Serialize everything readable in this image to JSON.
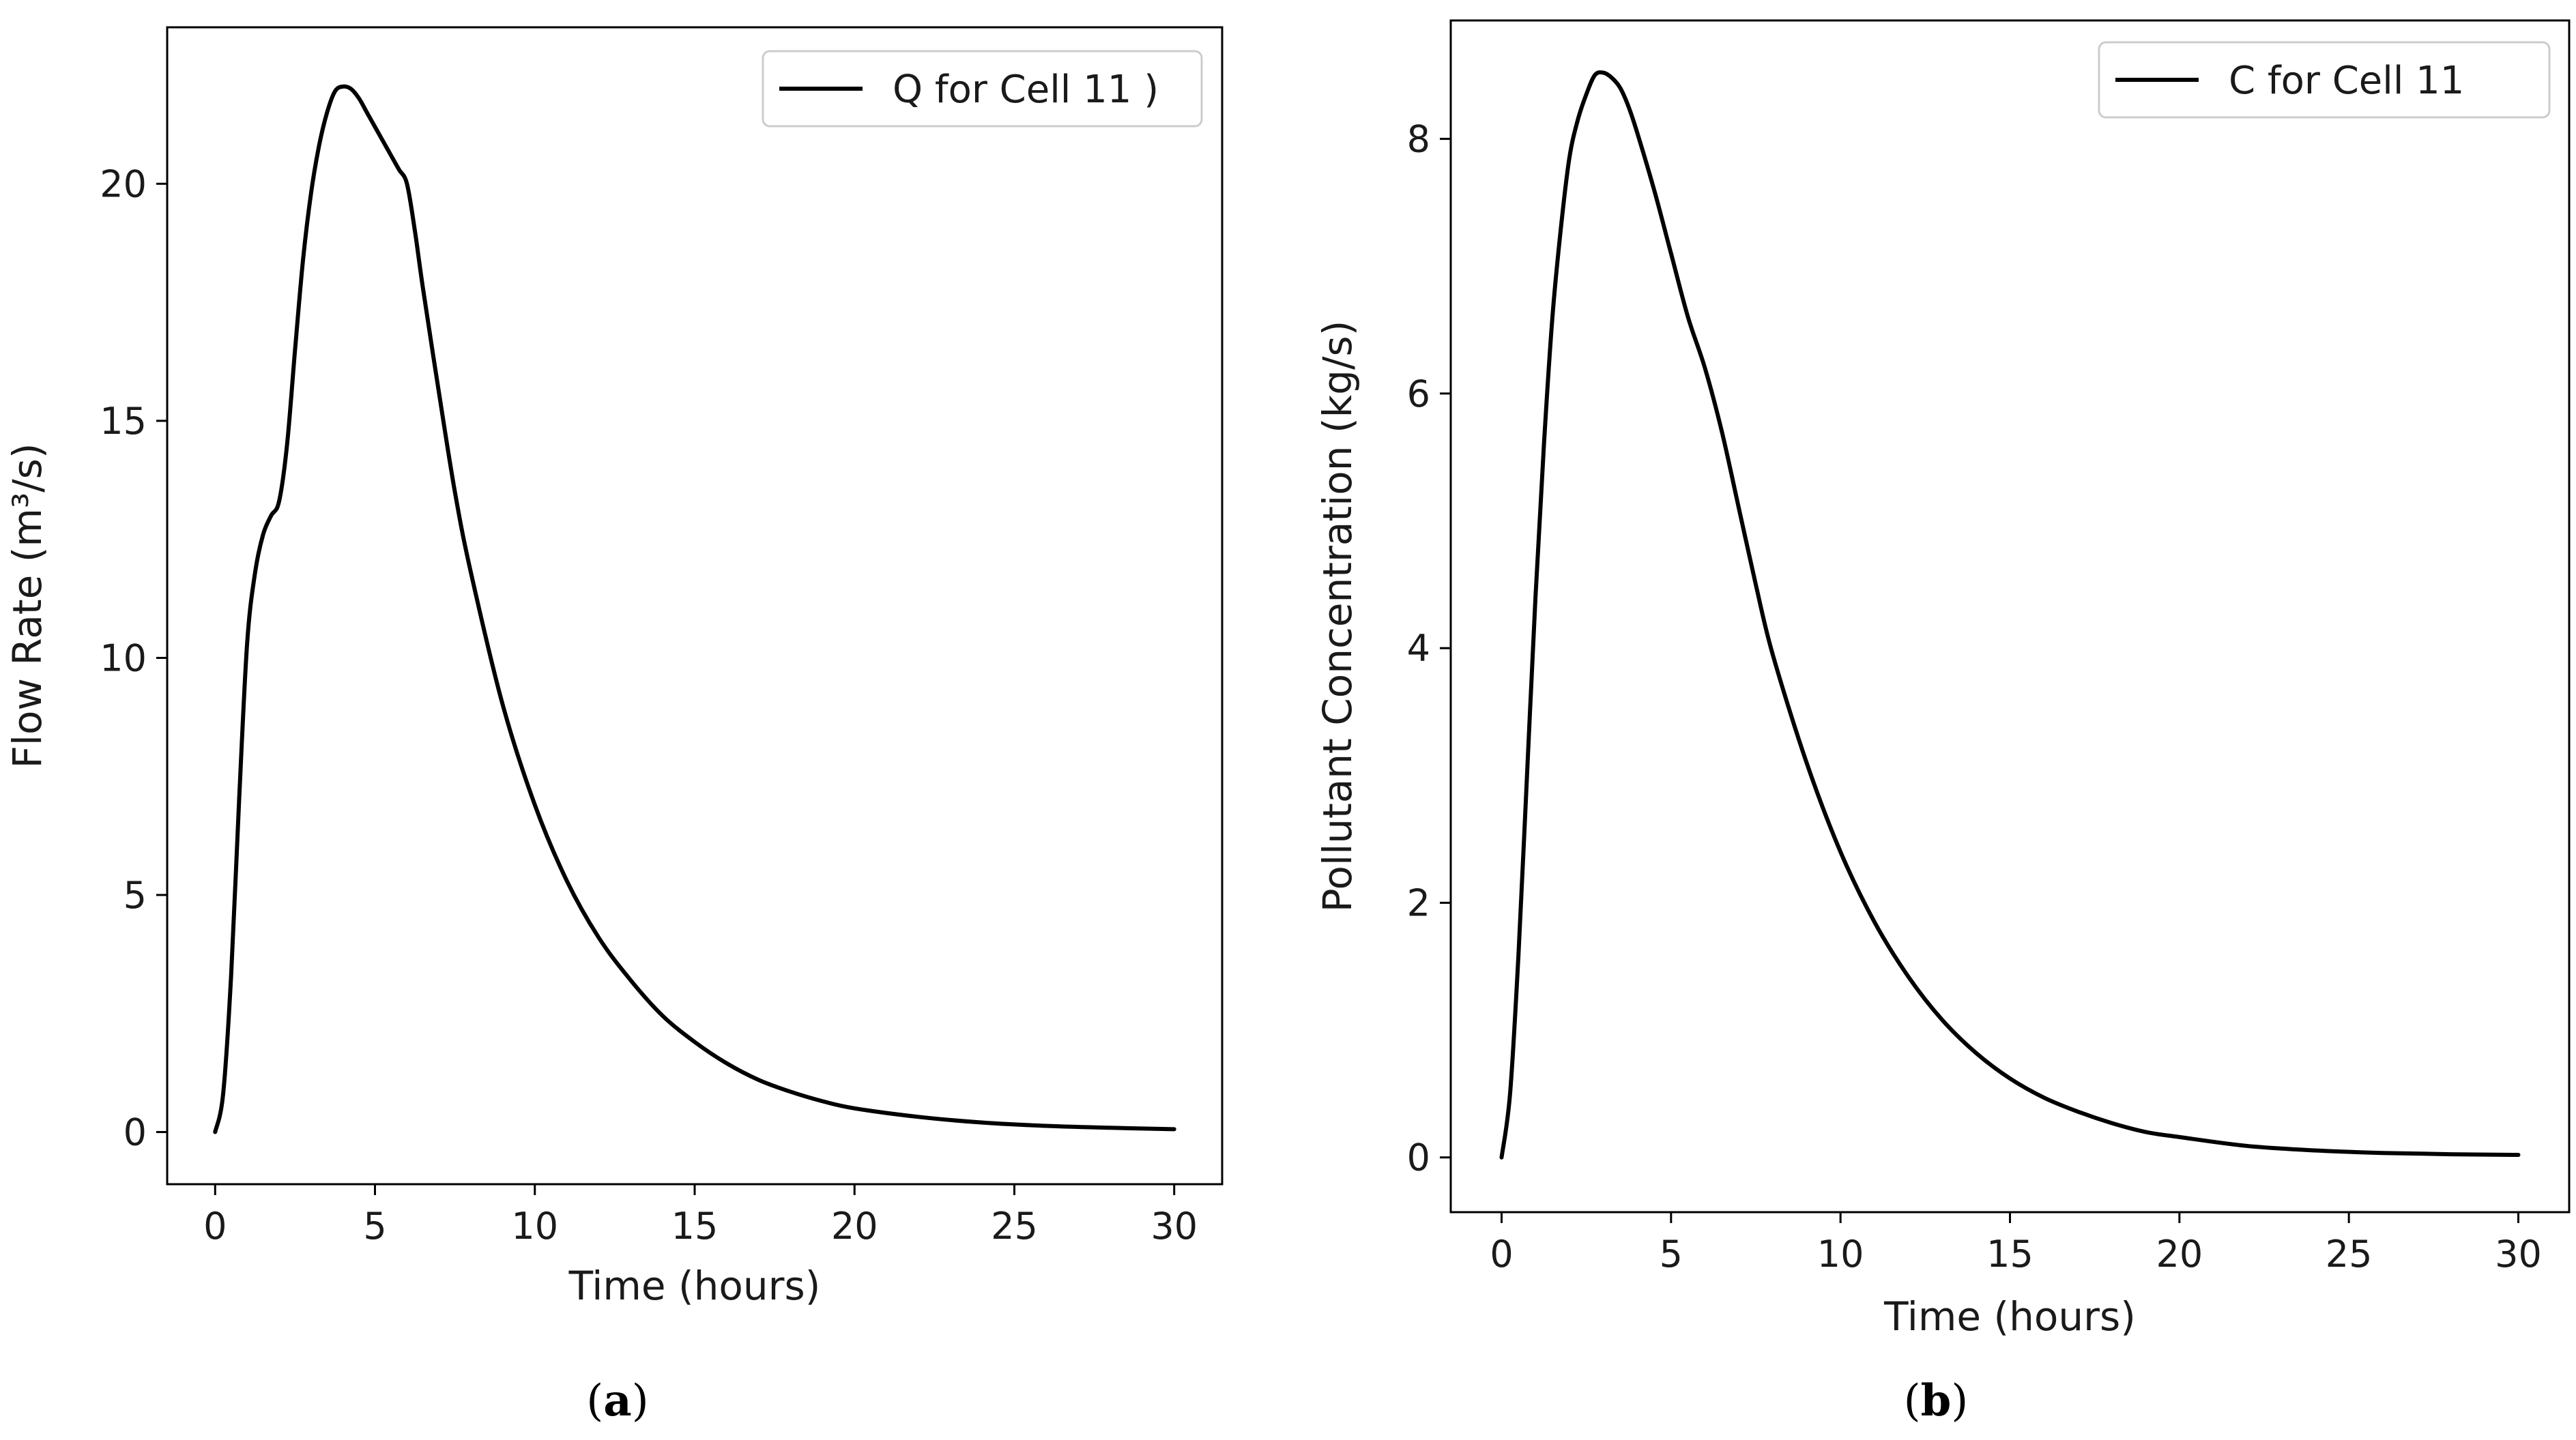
{
  "chart_data": [
    {
      "type": "line",
      "caption": "a",
      "title": "",
      "xlabel": "Time (hours)",
      "ylabel": "Flow Rate (m³/s)",
      "xlim": [
        -1.5,
        31.5
      ],
      "ylim": [
        -1.1,
        23.3
      ],
      "xticks": [
        0,
        5,
        10,
        15,
        20,
        25,
        30
      ],
      "yticks": [
        0,
        5,
        10,
        15,
        20
      ],
      "legend_position": "top-right",
      "grid": false,
      "series": [
        {
          "name": "Q for Cell 11 )",
          "color": "#000000",
          "x": [
            0,
            0.25,
            0.5,
            0.75,
            1.0,
            1.25,
            1.5,
            1.75,
            2.0,
            2.25,
            2.5,
            2.75,
            3.0,
            3.25,
            3.5,
            3.75,
            4.0,
            4.25,
            4.5,
            4.75,
            5.0,
            5.25,
            5.5,
            5.75,
            6.0,
            6.25,
            6.5,
            7,
            7.5,
            8,
            9,
            10,
            11,
            12,
            13,
            14,
            15,
            16,
            17,
            18,
            19,
            20,
            22,
            24,
            26,
            28,
            30
          ],
          "y": [
            0,
            0.8,
            3.3,
            7.0,
            10.3,
            11.8,
            12.6,
            13.0,
            13.3,
            14.5,
            16.5,
            18.4,
            19.8,
            20.8,
            21.5,
            21.95,
            22.05,
            22.0,
            21.8,
            21.5,
            21.2,
            20.9,
            20.6,
            20.3,
            20.0,
            19.0,
            17.8,
            15.6,
            13.5,
            11.8,
            9.0,
            6.9,
            5.3,
            4.1,
            3.2,
            2.45,
            1.9,
            1.45,
            1.1,
            0.85,
            0.65,
            0.5,
            0.32,
            0.2,
            0.13,
            0.09,
            0.06
          ]
        }
      ]
    },
    {
      "type": "line",
      "caption": "b",
      "title": "",
      "xlabel": "Time (hours)",
      "ylabel": "Pollutant Concentration (kg/s)",
      "xlim": [
        -1.5,
        31.5
      ],
      "ylim": [
        -0.43,
        8.93
      ],
      "xticks": [
        0,
        5,
        10,
        15,
        20,
        25,
        30
      ],
      "yticks": [
        0,
        2,
        4,
        6,
        8
      ],
      "legend_position": "top-right",
      "grid": false,
      "series": [
        {
          "name": "C for Cell 11",
          "color": "#000000",
          "x": [
            0,
            0.25,
            0.5,
            0.75,
            1.0,
            1.25,
            1.5,
            1.75,
            2.0,
            2.25,
            2.5,
            2.75,
            3.0,
            3.25,
            3.5,
            3.75,
            4.0,
            4.5,
            5.0,
            5.5,
            6.0,
            6.5,
            7,
            7.5,
            8,
            9,
            10,
            11,
            12,
            13,
            14,
            15,
            16,
            17,
            18,
            19,
            20,
            22,
            24,
            26,
            28,
            30
          ],
          "y": [
            0,
            0.5,
            1.6,
            3.0,
            4.4,
            5.6,
            6.6,
            7.3,
            7.85,
            8.15,
            8.35,
            8.5,
            8.52,
            8.48,
            8.4,
            8.25,
            8.05,
            7.6,
            7.1,
            6.6,
            6.2,
            5.7,
            5.1,
            4.5,
            3.95,
            3.1,
            2.4,
            1.85,
            1.42,
            1.08,
            0.82,
            0.62,
            0.47,
            0.36,
            0.27,
            0.2,
            0.16,
            0.09,
            0.055,
            0.035,
            0.025,
            0.02
          ]
        }
      ]
    }
  ]
}
